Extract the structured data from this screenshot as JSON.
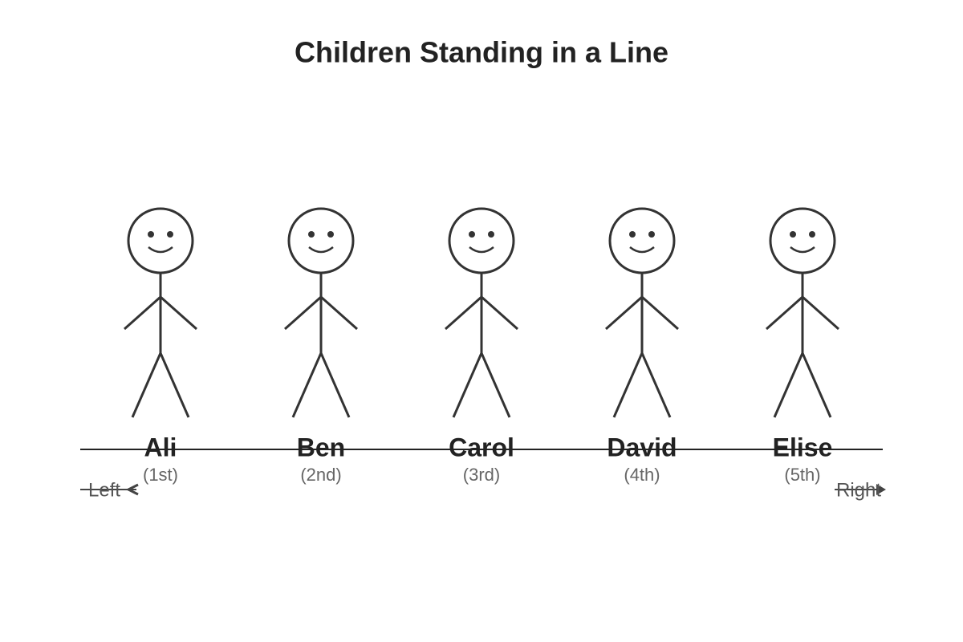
{
  "title": "Children Standing in a Line",
  "children": [
    {
      "name": "Ali",
      "position": "(1st)"
    },
    {
      "name": "Ben",
      "position": "(2nd)"
    },
    {
      "name": "Carol",
      "position": "(3rd)"
    },
    {
      "name": "David",
      "position": "(4th)"
    },
    {
      "name": "Elise",
      "position": "(5th)"
    }
  ],
  "direction": {
    "left": "Left",
    "right": "Right"
  }
}
